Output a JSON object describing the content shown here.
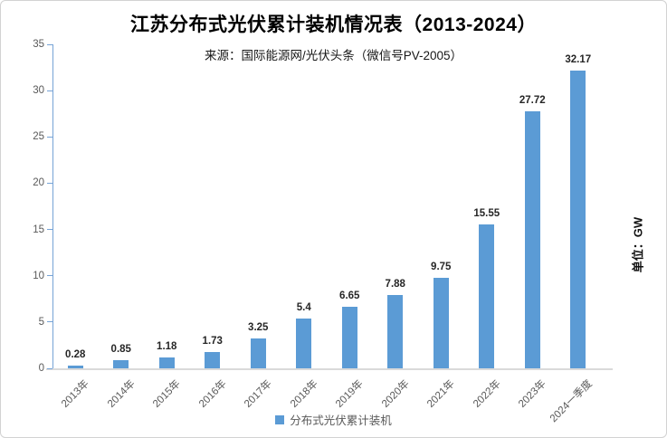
{
  "chart_data": {
    "type": "bar",
    "title": "江苏分布式光伏累计装机情况表（2013-2024）",
    "subtitle": "来源：国际能源网/光伏头条（微信号PV-2005）",
    "unit_label": "单位：GW",
    "legend": [
      "分布式光伏累计装机"
    ],
    "legend_position": "bottom",
    "categories": [
      "2013年",
      "2014年",
      "2015年",
      "2016年",
      "2017年",
      "2018年",
      "2019年",
      "2020年",
      "2021年",
      "2022年",
      "2023年",
      "2024一季度"
    ],
    "values": [
      0.28,
      0.85,
      1.18,
      1.73,
      3.25,
      5.4,
      6.65,
      7.88,
      9.75,
      15.55,
      27.72,
      32.17
    ],
    "data_labels": [
      "0.28",
      "0.85",
      "1.18",
      "1.73",
      "3.25",
      "5.4",
      "6.65",
      "7.88",
      "9.75",
      "15.55",
      "27.72",
      "32.17"
    ],
    "xlabel": "",
    "ylabel": "",
    "ylim": [
      0,
      35
    ],
    "yticks": [
      0,
      5,
      10,
      15,
      20,
      25,
      30,
      35
    ],
    "grid": false,
    "colors": {
      "bar": "#5B9BD5",
      "y_axis_line": "#76a3d6",
      "x_axis_line": "#dadada",
      "tick_label_text": "#595959",
      "data_label_text": "#262626",
      "legend_text": "#595959",
      "title_text": "#000000"
    }
  }
}
